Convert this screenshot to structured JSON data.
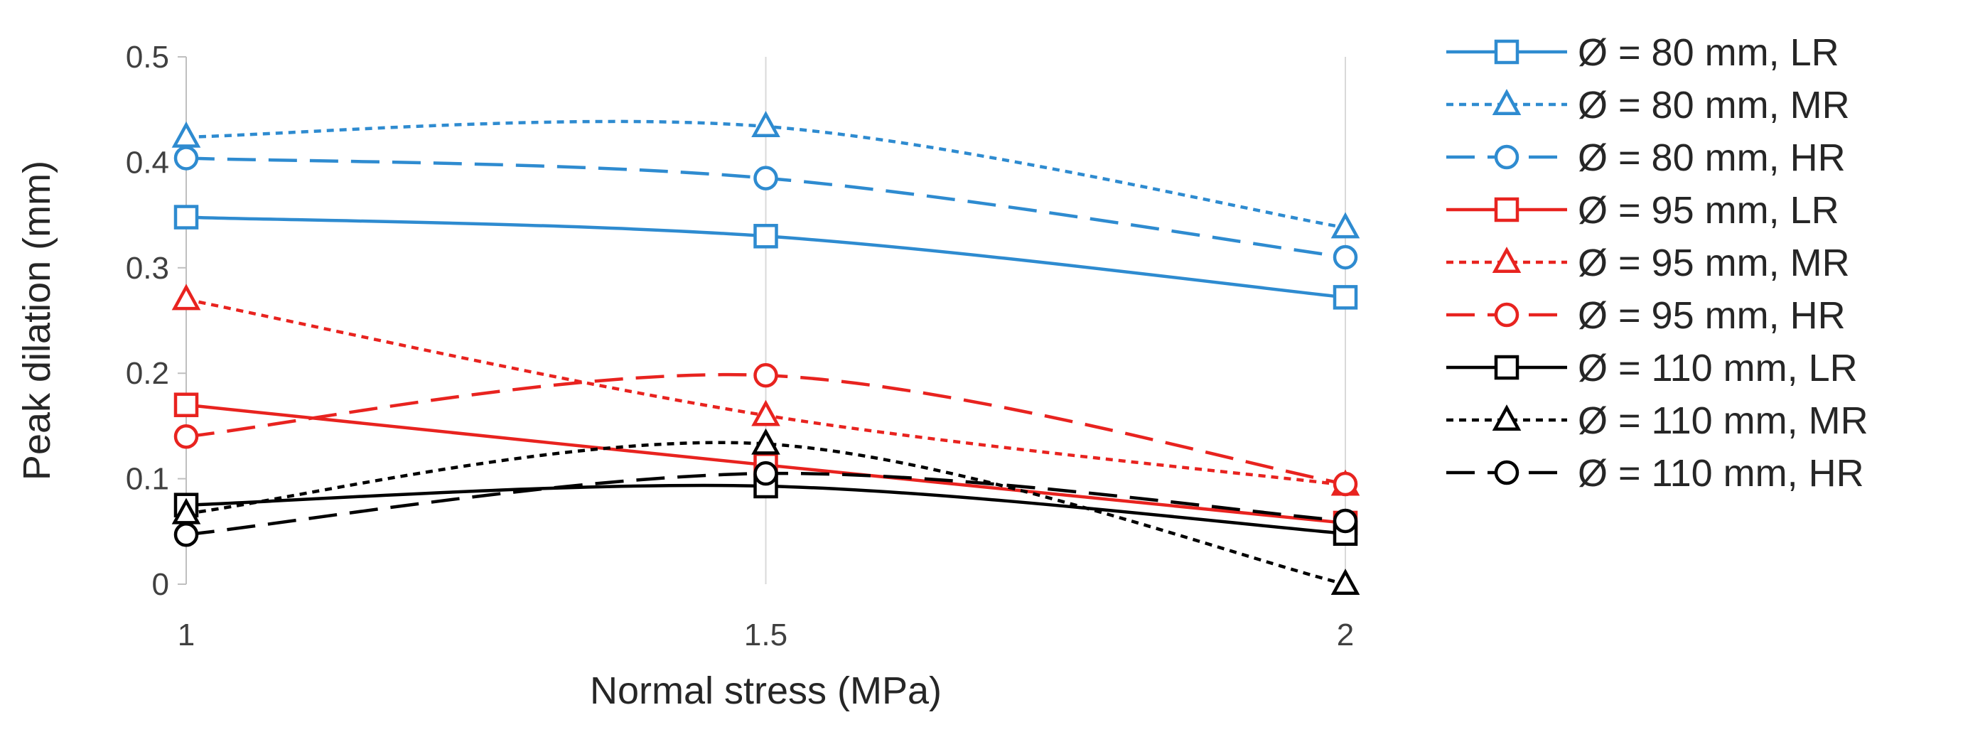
{
  "chart_data": {
    "type": "line",
    "title": "",
    "xlabel": "Normal stress (MPa)",
    "ylabel": "Peak dilation (mm)",
    "x": [
      1,
      1.5,
      2
    ],
    "x_ticks": [
      "1",
      "1.5",
      "2"
    ],
    "y_ticks": [
      "0",
      "0.1",
      "0.2",
      "0.3",
      "0.4",
      "0.5"
    ],
    "xlim": [
      1,
      2
    ],
    "ylim": [
      0,
      0.5
    ],
    "grid": "vertical",
    "legend_position": "right",
    "series": [
      {
        "name": "Ø = 80 mm, LR",
        "color": "#2e8bd0",
        "dash": "solid",
        "marker": "square",
        "values": [
          0.348,
          0.33,
          0.272
        ]
      },
      {
        "name": "Ø = 80 mm, MR",
        "color": "#2e8bd0",
        "dash": "dot",
        "marker": "triangle",
        "values": [
          0.424,
          0.434,
          0.338
        ]
      },
      {
        "name": "Ø = 80 mm, HR",
        "color": "#2e8bd0",
        "dash": "dash",
        "marker": "circle",
        "values": [
          0.404,
          0.385,
          0.31
        ]
      },
      {
        "name": "Ø = 95 mm, LR",
        "color": "#e8231f",
        "dash": "solid",
        "marker": "square",
        "values": [
          0.17,
          0.113,
          0.058
        ]
      },
      {
        "name": "Ø = 95 mm, MR",
        "color": "#e8231f",
        "dash": "dot",
        "marker": "triangle",
        "values": [
          0.27,
          0.16,
          0.094
        ]
      },
      {
        "name": "Ø = 95 mm, HR",
        "color": "#e8231f",
        "dash": "dash",
        "marker": "circle",
        "values": [
          0.14,
          0.198,
          0.095
        ]
      },
      {
        "name": "Ø = 110 mm, LR",
        "color": "#000000",
        "dash": "solid",
        "marker": "square",
        "values": [
          0.075,
          0.093,
          0.048
        ]
      },
      {
        "name": "Ø = 110 mm, MR",
        "color": "#000000",
        "dash": "dot",
        "marker": "triangle",
        "values": [
          0.067,
          0.133,
          0.0
        ]
      },
      {
        "name": "Ø = 110 mm, HR",
        "color": "#000000",
        "dash": "dash",
        "marker": "circle",
        "values": [
          0.047,
          0.105,
          0.06
        ]
      }
    ]
  }
}
